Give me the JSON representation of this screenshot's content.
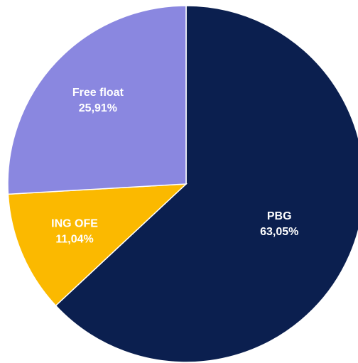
{
  "chart_data": {
    "type": "pie",
    "categories": [
      "PBG",
      "ING OFE",
      "Free float"
    ],
    "values": [
      63.05,
      11.04,
      25.91
    ],
    "value_labels": [
      "63,05%",
      "11,04%",
      "25,91%"
    ],
    "colors": [
      "#0b1f4f",
      "#fbb900",
      "#8a87e0"
    ]
  }
}
